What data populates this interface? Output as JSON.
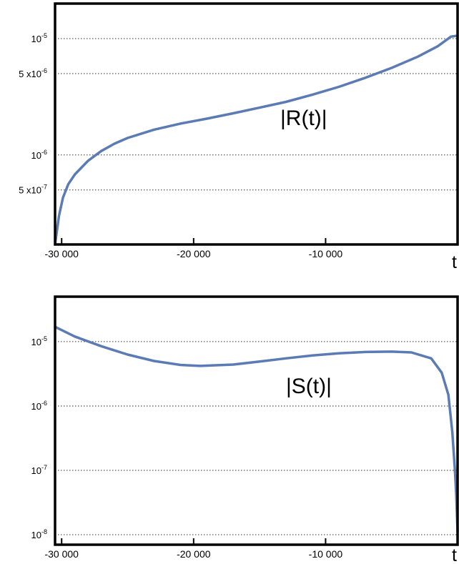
{
  "chart_data": [
    {
      "type": "line",
      "title": "",
      "xlabel": "t",
      "ylabel": "",
      "annotation": "|R(t)|",
      "y_scale": "log",
      "xlim": [
        -30500,
        0
      ],
      "ylim": [
        1.7e-07,
        2e-05
      ],
      "grid": "horizontal dotted",
      "color": "#5b7bb4",
      "x_ticks": [
        {
          "value": -30000,
          "label": "-30 000"
        },
        {
          "value": -20000,
          "label": "-20 000"
        },
        {
          "value": -10000,
          "label": "-10 000"
        }
      ],
      "y_ticks": [
        {
          "value": 1e-05,
          "base": "10",
          "exp": "-5"
        },
        {
          "value": 5e-06,
          "base": "5 x10",
          "exp": "-6"
        },
        {
          "value": 1e-06,
          "base": "10",
          "exp": "-6"
        },
        {
          "value": 5e-07,
          "base": "5 x10",
          "exp": "-7"
        }
      ],
      "series": [
        {
          "x": [
            -30500,
            -30200,
            -29900,
            -29500,
            -29000,
            -28000,
            -27000,
            -26000,
            -25000,
            -23000,
            -21000,
            -19000,
            -17000,
            -15000,
            -13000,
            -11000,
            -9000,
            -7000,
            -5000,
            -3000,
            -1500,
            -500,
            0
          ],
          "y": [
            1.7e-07,
            3e-07,
            4.3e-07,
            5.6e-07,
            6.8e-07,
            8.9e-07,
            1.08e-06,
            1.25e-06,
            1.4e-06,
            1.65e-06,
            1.86e-06,
            2.05e-06,
            2.28e-06,
            2.55e-06,
            2.86e-06,
            3.3e-06,
            3.85e-06,
            4.6e-06,
            5.6e-06,
            7e-06,
            8.6e-06,
            1.04e-05,
            1.06e-05
          ]
        }
      ]
    },
    {
      "type": "line",
      "title": "",
      "xlabel": "t",
      "ylabel": "",
      "annotation": "|S(t)|",
      "y_scale": "log",
      "xlim": [
        -30500,
        0
      ],
      "ylim": [
        7e-09,
        5e-05
      ],
      "grid": "horizontal dotted",
      "color": "#5b7bb4",
      "x_ticks": [
        {
          "value": -30000,
          "label": "-30 000"
        },
        {
          "value": -20000,
          "label": "-20 000"
        },
        {
          "value": -10000,
          "label": "-10 000"
        }
      ],
      "y_ticks": [
        {
          "value": 1e-05,
          "base": "10",
          "exp": "-5"
        },
        {
          "value": 1e-06,
          "base": "10",
          "exp": "-6"
        },
        {
          "value": 1e-07,
          "base": "10",
          "exp": "-7"
        },
        {
          "value": 1e-08,
          "base": "10",
          "exp": "-8"
        }
      ],
      "series": [
        {
          "x": [
            -30500,
            -29000,
            -27000,
            -25000,
            -23000,
            -21000,
            -19500,
            -17000,
            -15000,
            -13000,
            -11000,
            -9000,
            -7000,
            -5000,
            -3500,
            -2000,
            -1200,
            -700,
            -400,
            -200,
            -100,
            0
          ],
          "y": [
            1.7e-05,
            1.2e-05,
            8.5e-06,
            6.3e-06,
            5e-06,
            4.35e-06,
            4.2e-06,
            4.4e-06,
            4.9e-06,
            5.5e-06,
            6.1e-06,
            6.6e-06,
            6.9e-06,
            7e-06,
            6.8e-06,
            5.5e-06,
            3.3e-06,
            1.5e-06,
            4e-07,
            1e-07,
            4e-08,
            1.1e-08
          ]
        }
      ]
    }
  ]
}
